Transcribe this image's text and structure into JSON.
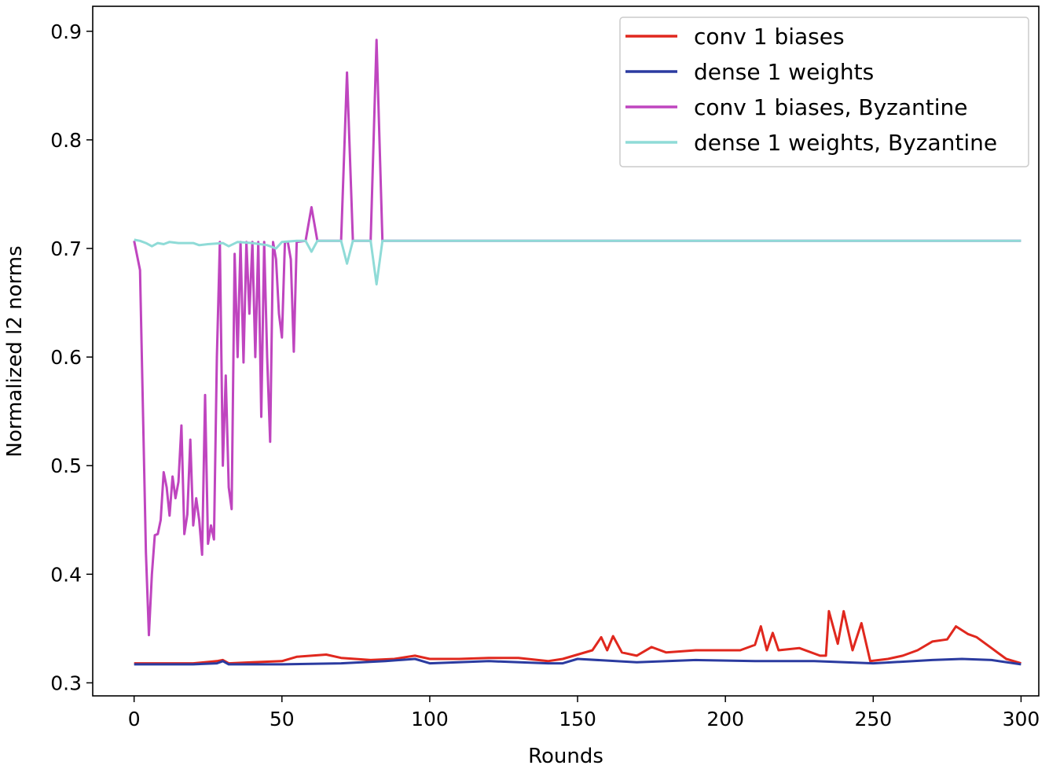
{
  "chart_data": {
    "type": "line",
    "title": "",
    "xlabel": "Rounds",
    "ylabel": "Normalized l2 norms",
    "xlim": [
      -14,
      306
    ],
    "ylim": [
      0.288,
      0.923
    ],
    "xticks": [
      0,
      50,
      100,
      150,
      200,
      250,
      300
    ],
    "yticks": [
      0.3,
      0.4,
      0.5,
      0.6,
      0.7,
      0.8,
      0.9
    ],
    "grid": false,
    "legend_position": "top-right",
    "series": [
      {
        "name": "conv 1 biases",
        "color": "#e0281e",
        "points": [
          [
            0,
            0.318
          ],
          [
            10,
            0.318
          ],
          [
            20,
            0.318
          ],
          [
            28,
            0.32
          ],
          [
            30,
            0.321
          ],
          [
            32,
            0.318
          ],
          [
            40,
            0.319
          ],
          [
            50,
            0.32
          ],
          [
            55,
            0.324
          ],
          [
            60,
            0.325
          ],
          [
            65,
            0.326
          ],
          [
            70,
            0.323
          ],
          [
            80,
            0.321
          ],
          [
            88,
            0.322
          ],
          [
            95,
            0.325
          ],
          [
            100,
            0.322
          ],
          [
            110,
            0.322
          ],
          [
            120,
            0.323
          ],
          [
            130,
            0.323
          ],
          [
            140,
            0.32
          ],
          [
            145,
            0.322
          ],
          [
            150,
            0.326
          ],
          [
            155,
            0.33
          ],
          [
            158,
            0.342
          ],
          [
            160,
            0.33
          ],
          [
            162,
            0.343
          ],
          [
            165,
            0.328
          ],
          [
            170,
            0.325
          ],
          [
            175,
            0.333
          ],
          [
            180,
            0.328
          ],
          [
            190,
            0.33
          ],
          [
            200,
            0.33
          ],
          [
            205,
            0.33
          ],
          [
            210,
            0.335
          ],
          [
            212,
            0.352
          ],
          [
            214,
            0.33
          ],
          [
            216,
            0.346
          ],
          [
            218,
            0.33
          ],
          [
            225,
            0.332
          ],
          [
            232,
            0.325
          ],
          [
            234,
            0.325
          ],
          [
            235,
            0.366
          ],
          [
            238,
            0.336
          ],
          [
            240,
            0.366
          ],
          [
            243,
            0.33
          ],
          [
            246,
            0.355
          ],
          [
            249,
            0.32
          ],
          [
            255,
            0.322
          ],
          [
            260,
            0.325
          ],
          [
            265,
            0.33
          ],
          [
            270,
            0.338
          ],
          [
            275,
            0.34
          ],
          [
            278,
            0.352
          ],
          [
            282,
            0.345
          ],
          [
            285,
            0.342
          ],
          [
            290,
            0.332
          ],
          [
            295,
            0.322
          ],
          [
            300,
            0.318
          ]
        ]
      },
      {
        "name": "dense 1 weights",
        "color": "#2b3ba0",
        "points": [
          [
            0,
            0.317
          ],
          [
            20,
            0.317
          ],
          [
            28,
            0.318
          ],
          [
            30,
            0.32
          ],
          [
            32,
            0.317
          ],
          [
            50,
            0.317
          ],
          [
            70,
            0.318
          ],
          [
            85,
            0.32
          ],
          [
            95,
            0.322
          ],
          [
            100,
            0.318
          ],
          [
            120,
            0.32
          ],
          [
            140,
            0.318
          ],
          [
            145,
            0.318
          ],
          [
            150,
            0.322
          ],
          [
            170,
            0.319
          ],
          [
            190,
            0.321
          ],
          [
            210,
            0.32
          ],
          [
            230,
            0.32
          ],
          [
            250,
            0.318
          ],
          [
            270,
            0.321
          ],
          [
            280,
            0.322
          ],
          [
            290,
            0.321
          ],
          [
            300,
            0.317
          ]
        ]
      },
      {
        "name": "conv 1 biases, Byzantine",
        "color": "#bf45bf",
        "points": [
          [
            0,
            0.707
          ],
          [
            2,
            0.68
          ],
          [
            4,
            0.42
          ],
          [
            5,
            0.344
          ],
          [
            6,
            0.4
          ],
          [
            7,
            0.436
          ],
          [
            8,
            0.437
          ],
          [
            9,
            0.45
          ],
          [
            10,
            0.494
          ],
          [
            11,
            0.48
          ],
          [
            12,
            0.454
          ],
          [
            13,
            0.49
          ],
          [
            14,
            0.47
          ],
          [
            15,
            0.485
          ],
          [
            16,
            0.537
          ],
          [
            17,
            0.437
          ],
          [
            18,
            0.455
          ],
          [
            19,
            0.524
          ],
          [
            20,
            0.445
          ],
          [
            21,
            0.47
          ],
          [
            22,
            0.45
          ],
          [
            23,
            0.418
          ],
          [
            24,
            0.565
          ],
          [
            25,
            0.428
          ],
          [
            26,
            0.445
          ],
          [
            27,
            0.432
          ],
          [
            28,
            0.6
          ],
          [
            29,
            0.706
          ],
          [
            30,
            0.5
          ],
          [
            31,
            0.583
          ],
          [
            32,
            0.48
          ],
          [
            33,
            0.46
          ],
          [
            34,
            0.695
          ],
          [
            35,
            0.6
          ],
          [
            36,
            0.706
          ],
          [
            37,
            0.595
          ],
          [
            38,
            0.706
          ],
          [
            39,
            0.64
          ],
          [
            40,
            0.706
          ],
          [
            41,
            0.6
          ],
          [
            42,
            0.706
          ],
          [
            43,
            0.545
          ],
          [
            44,
            0.706
          ],
          [
            45,
            0.6
          ],
          [
            46,
            0.522
          ],
          [
            47,
            0.706
          ],
          [
            48,
            0.69
          ],
          [
            49,
            0.64
          ],
          [
            50,
            0.618
          ],
          [
            51,
            0.706
          ],
          [
            52,
            0.706
          ],
          [
            53,
            0.69
          ],
          [
            54,
            0.605
          ],
          [
            55,
            0.706
          ],
          [
            58,
            0.707
          ],
          [
            60,
            0.738
          ],
          [
            62,
            0.707
          ],
          [
            70,
            0.707
          ],
          [
            72,
            0.862
          ],
          [
            74,
            0.707
          ],
          [
            80,
            0.707
          ],
          [
            82,
            0.892
          ],
          [
            84,
            0.707
          ],
          [
            300,
            0.707
          ]
        ]
      },
      {
        "name": "dense 1 weights, Byzantine",
        "color": "#8fdbd7",
        "points": [
          [
            0,
            0.708
          ],
          [
            2,
            0.707
          ],
          [
            4,
            0.705
          ],
          [
            6,
            0.702
          ],
          [
            8,
            0.705
          ],
          [
            10,
            0.704
          ],
          [
            12,
            0.706
          ],
          [
            15,
            0.705
          ],
          [
            20,
            0.705
          ],
          [
            22,
            0.703
          ],
          [
            25,
            0.704
          ],
          [
            30,
            0.705
          ],
          [
            32,
            0.702
          ],
          [
            35,
            0.706
          ],
          [
            40,
            0.705
          ],
          [
            45,
            0.703
          ],
          [
            48,
            0.7
          ],
          [
            50,
            0.706
          ],
          [
            55,
            0.707
          ],
          [
            58,
            0.707
          ],
          [
            60,
            0.697
          ],
          [
            62,
            0.707
          ],
          [
            70,
            0.707
          ],
          [
            72,
            0.686
          ],
          [
            74,
            0.707
          ],
          [
            80,
            0.707
          ],
          [
            82,
            0.667
          ],
          [
            84,
            0.707
          ],
          [
            300,
            0.707
          ]
        ]
      }
    ]
  }
}
